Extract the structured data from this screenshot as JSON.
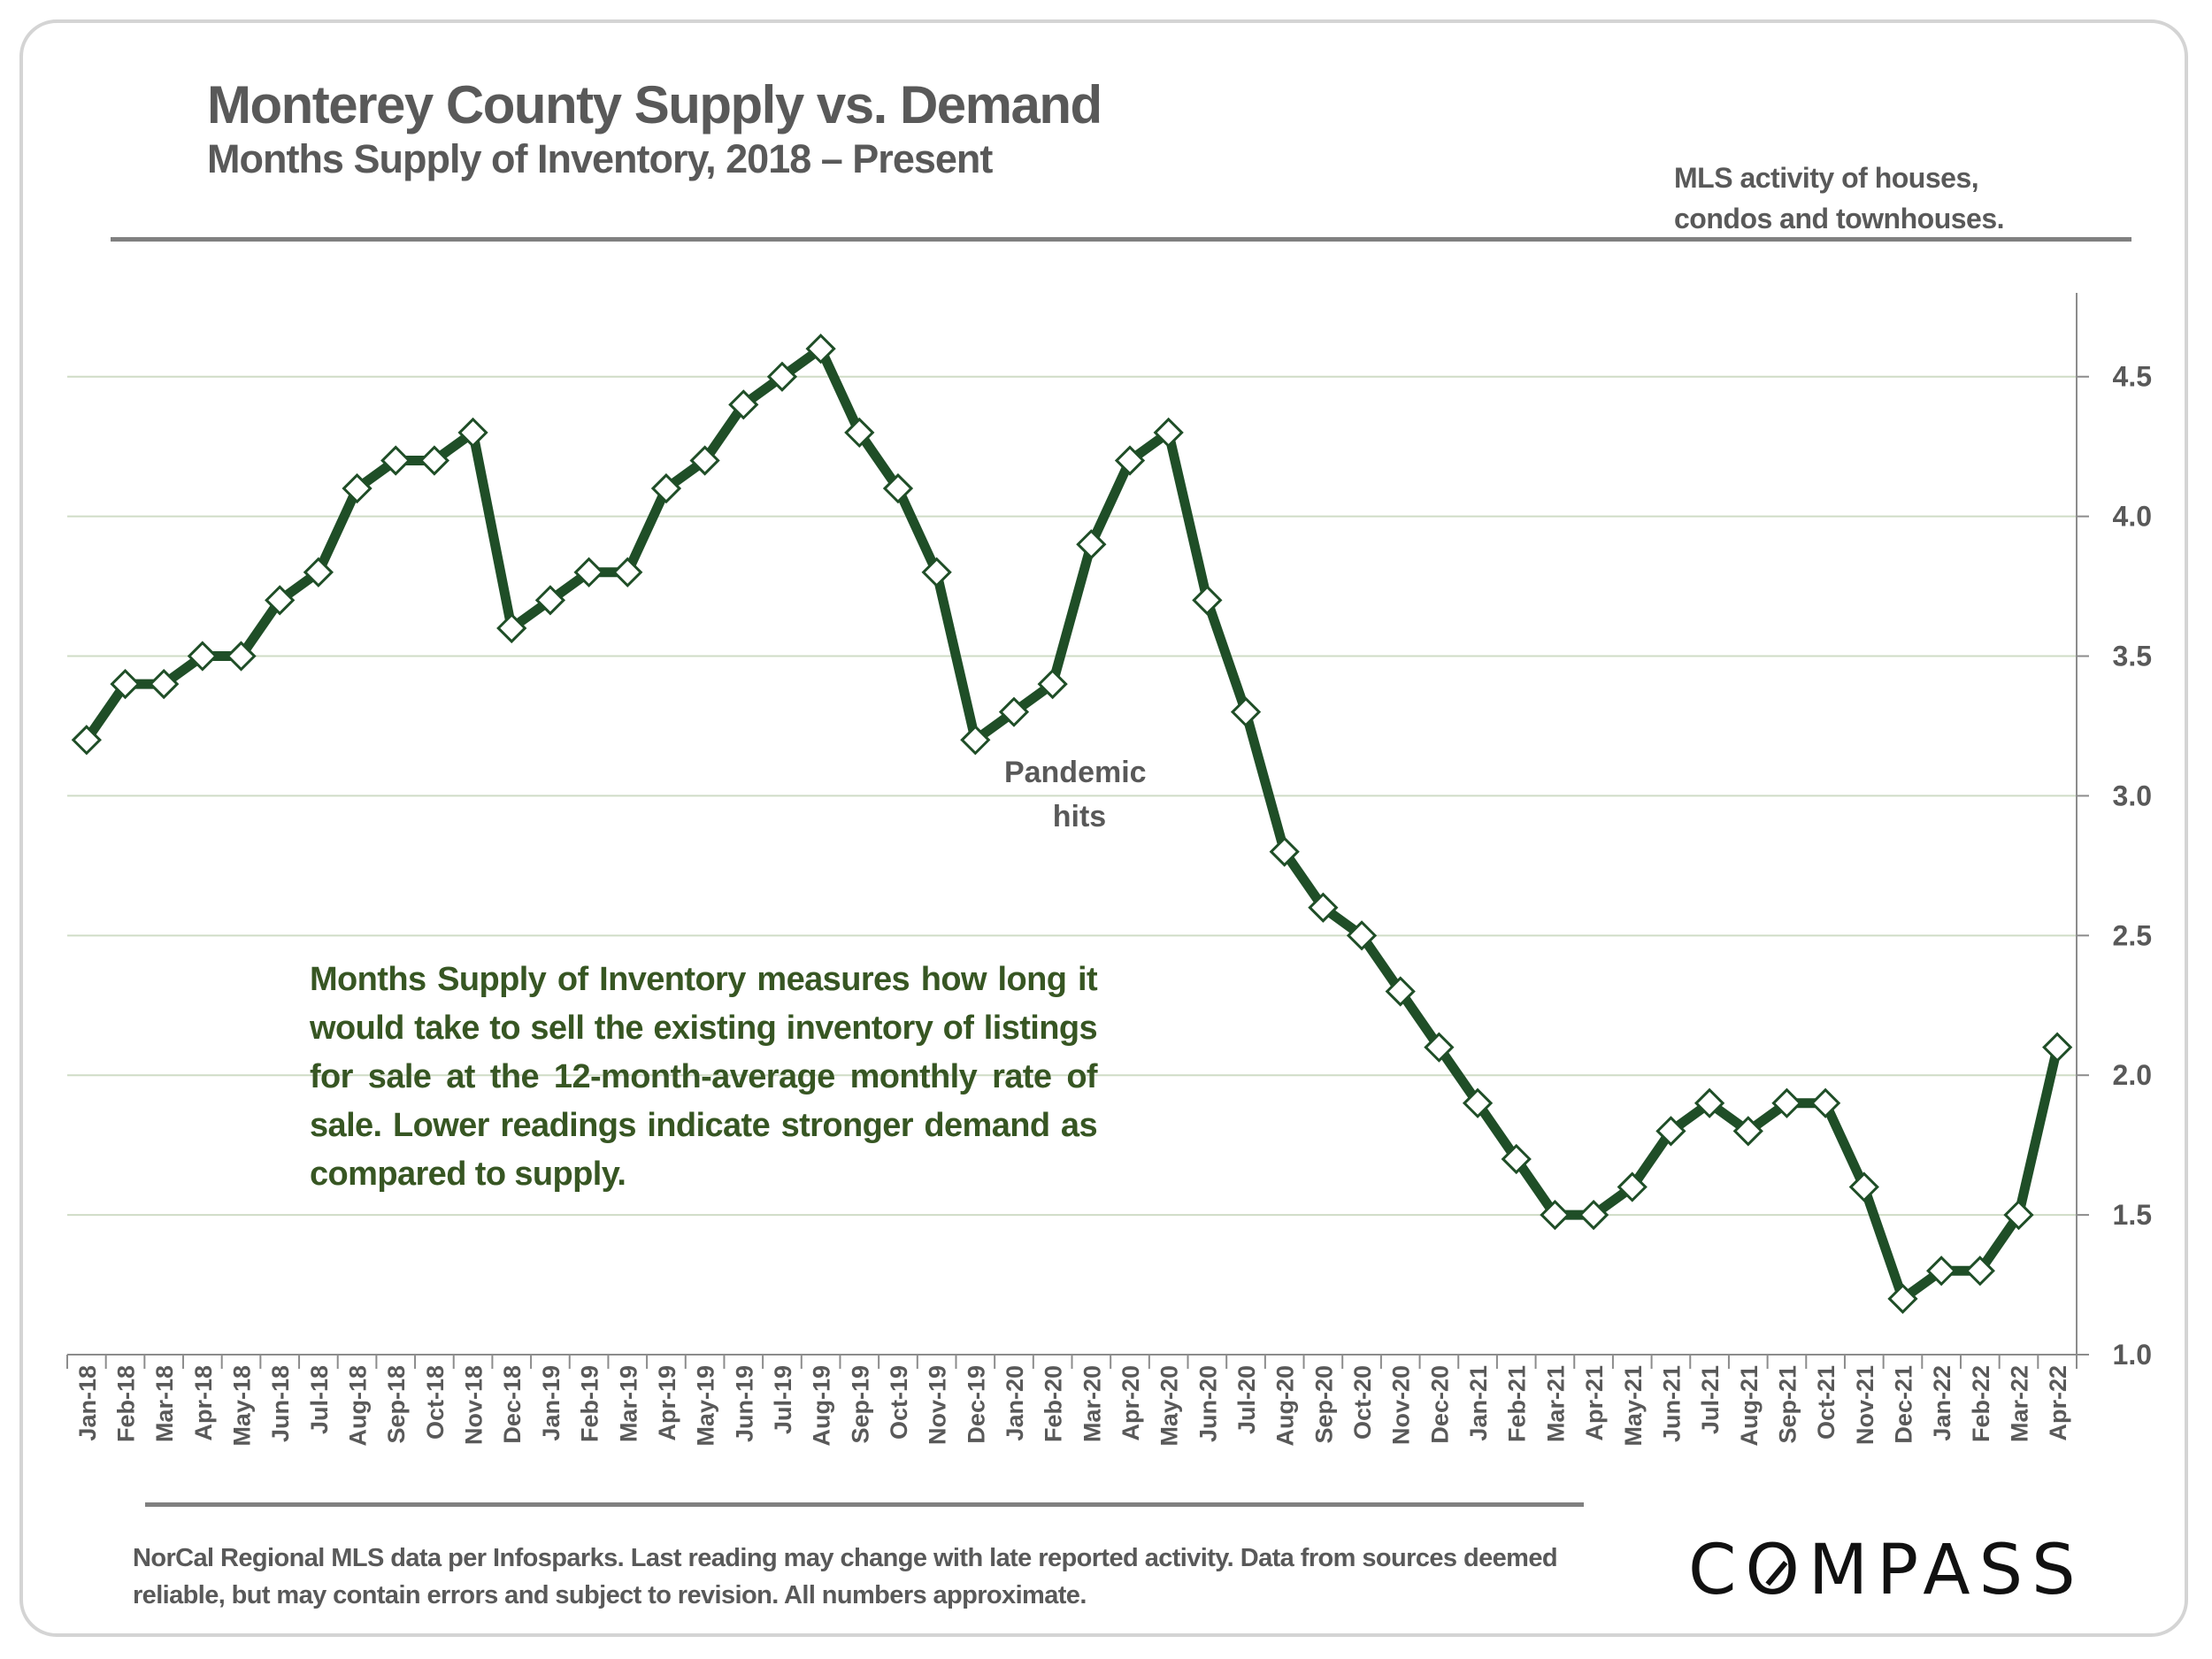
{
  "header": {
    "title": "Monterey County Supply vs. Demand",
    "subtitle": "Months Supply of Inventory, 2018 – Present",
    "note_lines": [
      "MLS activity of houses,",
      "condos and townhouses."
    ]
  },
  "annotations": {
    "pandemic_lines": [
      "Pandemic",
      "hits"
    ],
    "explainer": "Months Supply of Inventory measures how long it would take to sell the existing inventory of listings for sale at the 12-month-average monthly rate of sale. Lower readings indicate stronger demand as compared to supply."
  },
  "footer": {
    "source_note": "NorCal Regional MLS data per Infosparks. Last reading may change with late reported activity. Data from sources deemed reliable, but may contain errors and subject to revision. All numbers approximate.",
    "logo_text": "COMPASS"
  },
  "colors": {
    "line": "#1f4e27",
    "marker_fill": "#ffffff",
    "gridline": "#cfdcc6",
    "axis": "#8c8c8c",
    "text_gray": "#595959",
    "explainer_green": "#375623"
  },
  "chart_data": {
    "type": "line",
    "title": "Monterey County Supply vs. Demand",
    "subtitle": "Months Supply of Inventory, 2018 – Present",
    "xlabel": "",
    "ylabel": "",
    "y_axis_side": "right",
    "ylim": [
      1.0,
      4.8
    ],
    "yticks": [
      1.0,
      1.5,
      2.0,
      2.5,
      3.0,
      3.5,
      4.0,
      4.5
    ],
    "ytick_labels": [
      "1.0",
      "1.5",
      "2.0",
      "2.5",
      "3.0",
      "3.5",
      "4.0",
      "4.5"
    ],
    "grid": true,
    "legend": "none",
    "categories": [
      "Jan-18",
      "Feb-18",
      "Mar-18",
      "Apr-18",
      "May-18",
      "Jun-18",
      "Jul-18",
      "Aug-18",
      "Sep-18",
      "Oct-18",
      "Nov-18",
      "Dec-18",
      "Jan-19",
      "Feb-19",
      "Mar-19",
      "Apr-19",
      "May-19",
      "Jun-19",
      "Jul-19",
      "Aug-19",
      "Sep-19",
      "Oct-19",
      "Nov-19",
      "Dec-19",
      "Jan-20",
      "Feb-20",
      "Mar-20",
      "Apr-20",
      "May-20",
      "Jun-20",
      "Jul-20",
      "Aug-20",
      "Sep-20",
      "Oct-20",
      "Nov-20",
      "Dec-20",
      "Jan-21",
      "Feb-21",
      "Mar-21",
      "Apr-21",
      "May-21",
      "Jun-21",
      "Jul-21",
      "Aug-21",
      "Sep-21",
      "Oct-21",
      "Nov-21",
      "Dec-21",
      "Jan-22",
      "Feb-22",
      "Mar-22",
      "Apr-22"
    ],
    "series": [
      {
        "name": "Months Supply of Inventory",
        "values": [
          3.2,
          3.4,
          3.4,
          3.5,
          3.5,
          3.7,
          3.8,
          4.1,
          4.2,
          4.2,
          4.3,
          3.6,
          3.7,
          3.8,
          3.8,
          4.1,
          4.2,
          4.4,
          4.5,
          4.6,
          4.3,
          4.1,
          3.8,
          3.2,
          3.3,
          3.4,
          3.9,
          4.2,
          4.3,
          3.7,
          3.3,
          2.8,
          2.6,
          2.5,
          2.3,
          2.1,
          1.9,
          1.7,
          1.5,
          1.5,
          1.6,
          1.8,
          1.9,
          1.8,
          1.9,
          1.9,
          1.6,
          1.2,
          1.3,
          1.3,
          1.5,
          2.1
        ]
      }
    ],
    "annotations": [
      {
        "text": "Pandemic hits",
        "near": "Jan-20"
      }
    ]
  }
}
